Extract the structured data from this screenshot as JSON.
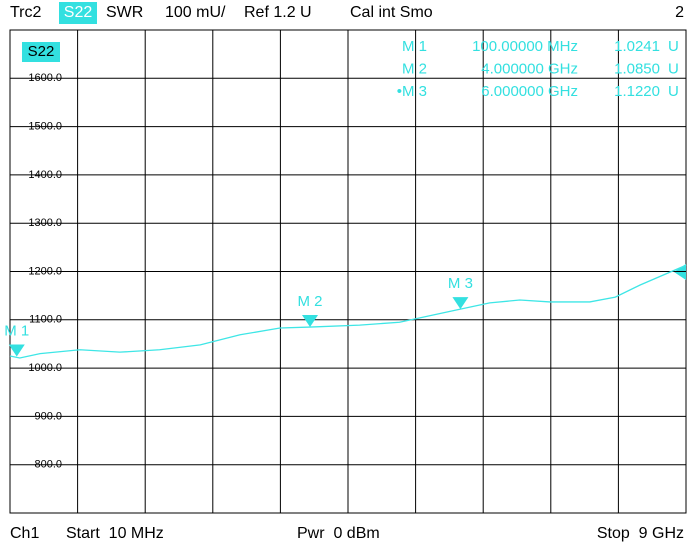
{
  "header": {
    "trace": "Trc2",
    "param": "S22",
    "format": "SWR",
    "scale": "100 mU/",
    "ref": "Ref 1.2 U",
    "cal": "Cal int Smo",
    "window": "2"
  },
  "footer": {
    "channel": "Ch1",
    "start": "Start  10 MHz",
    "power": "Pwr  0 dBm",
    "stop": "Stop  9 GHz"
  },
  "chart_data": {
    "type": "line",
    "trace_label": "S22",
    "color": "#3ee6e6",
    "x": [
      0.01,
      0.14,
      0.41,
      0.94,
      1.47,
      2.0,
      2.54,
      3.07,
      3.6,
      4.0,
      4.66,
      5.19,
      5.46,
      6.0,
      6.39,
      6.79,
      7.19,
      7.72,
      8.06,
      8.39,
      9.0
    ],
    "values": [
      1025,
      1021,
      1030,
      1038,
      1033,
      1038,
      1048,
      1069,
      1083,
      1085,
      1089,
      1095,
      1104,
      1122,
      1135,
      1141,
      1137,
      1137,
      1147,
      1172,
      1213
    ],
    "xlim": [
      0.01,
      9
    ],
    "ylim": [
      700,
      1700
    ],
    "yticks": [
      {
        "value": 1600,
        "label": "1600.0"
      },
      {
        "value": 1500,
        "label": "1500.0"
      },
      {
        "value": 1400,
        "label": "1400.0"
      },
      {
        "value": 1300,
        "label": "1300.0"
      },
      {
        "value": 1200,
        "label": "1200.0"
      },
      {
        "value": 1100,
        "label": "1100.0"
      },
      {
        "value": 1000,
        "label": "1000.0"
      },
      {
        "value": 900,
        "label": "900.0"
      },
      {
        "value": 800,
        "label": "800.0"
      }
    ],
    "grid": true,
    "markers": [
      {
        "name": "M 1",
        "list_name": "M 1",
        "freq": "100.00000 MHz",
        "reading": "1.0241",
        "unit": "U",
        "x": 0.1,
        "y": 1024.1
      },
      {
        "name": "M 2",
        "list_name": "M 2",
        "freq": "4.000000 GHz",
        "reading": "1.0850",
        "unit": "U",
        "x": 4.0,
        "y": 1085.0
      },
      {
        "name": "M 3",
        "list_name": "•M 3",
        "freq": "6.000000 GHz",
        "reading": "1.1220",
        "unit": "U",
        "x": 6.0,
        "y": 1122.0
      }
    ]
  }
}
